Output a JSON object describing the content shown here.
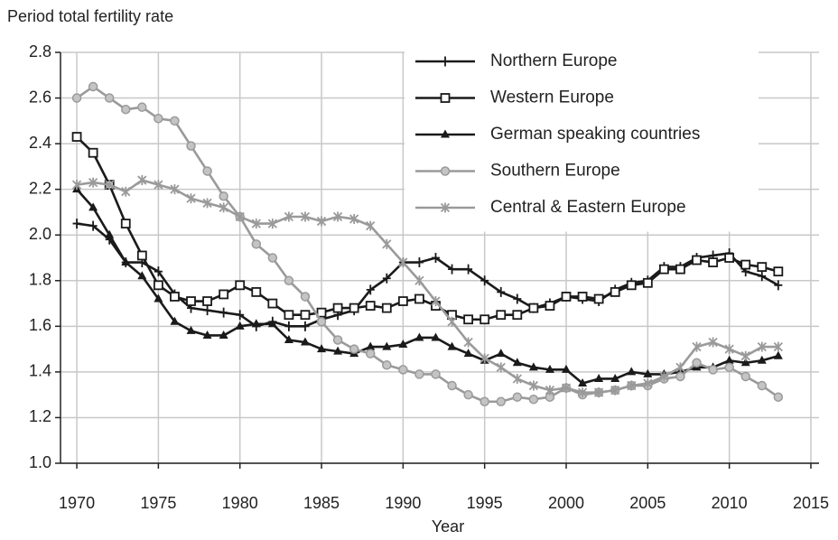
{
  "chart_data": {
    "type": "line",
    "y_label": "Period total fertility rate",
    "x_label": "Year",
    "x": [
      1970,
      1971,
      1972,
      1973,
      1974,
      1975,
      1976,
      1977,
      1978,
      1979,
      1980,
      1981,
      1982,
      1983,
      1984,
      1985,
      1986,
      1987,
      1988,
      1989,
      1990,
      1991,
      1992,
      1993,
      1994,
      1995,
      1996,
      1997,
      1998,
      1999,
      2000,
      2001,
      2002,
      2003,
      2004,
      2005,
      2006,
      2007,
      2008,
      2009,
      2010,
      2011,
      2012,
      2013
    ],
    "series": [
      {
        "name": "Northern Europe",
        "color": "#1a1a1a",
        "marker": "plus",
        "values": [
          2.05,
          2.04,
          1.98,
          1.88,
          1.88,
          1.84,
          1.74,
          1.68,
          1.67,
          1.66,
          1.65,
          1.6,
          1.62,
          1.6,
          1.6,
          1.63,
          1.65,
          1.67,
          1.76,
          1.81,
          1.88,
          1.88,
          1.9,
          1.85,
          1.85,
          1.8,
          1.75,
          1.72,
          1.68,
          1.7,
          1.73,
          1.72,
          1.71,
          1.76,
          1.79,
          1.8,
          1.86,
          1.86,
          1.9,
          1.91,
          1.92,
          1.84,
          1.82,
          1.78
        ]
      },
      {
        "name": "Western Europe",
        "color": "#1a1a1a",
        "marker": "square",
        "values": [
          2.43,
          2.36,
          2.22,
          2.05,
          1.91,
          1.78,
          1.73,
          1.71,
          1.71,
          1.74,
          1.78,
          1.75,
          1.7,
          1.65,
          1.65,
          1.66,
          1.68,
          1.68,
          1.69,
          1.68,
          1.71,
          1.72,
          1.69,
          1.65,
          1.63,
          1.63,
          1.65,
          1.65,
          1.68,
          1.69,
          1.73,
          1.73,
          1.72,
          1.75,
          1.78,
          1.79,
          1.85,
          1.85,
          1.89,
          1.88,
          1.9,
          1.87,
          1.86,
          1.84
        ]
      },
      {
        "name": "German speaking countries",
        "color": "#1a1a1a",
        "marker": "triangle",
        "values": [
          2.2,
          2.12,
          2.0,
          1.88,
          1.82,
          1.72,
          1.62,
          1.58,
          1.56,
          1.56,
          1.6,
          1.61,
          1.61,
          1.54,
          1.53,
          1.5,
          1.49,
          1.48,
          1.51,
          1.51,
          1.52,
          1.55,
          1.55,
          1.51,
          1.48,
          1.45,
          1.48,
          1.44,
          1.42,
          1.41,
          1.41,
          1.35,
          1.37,
          1.37,
          1.4,
          1.39,
          1.39,
          1.4,
          1.42,
          1.42,
          1.45,
          1.44,
          1.45,
          1.47
        ]
      },
      {
        "name": "Southern Europe",
        "color": "#9a9a9a",
        "marker": "circle",
        "values": [
          2.6,
          2.65,
          2.6,
          2.55,
          2.56,
          2.51,
          2.5,
          2.39,
          2.28,
          2.17,
          2.08,
          1.96,
          1.9,
          1.8,
          1.73,
          1.62,
          1.54,
          1.5,
          1.48,
          1.43,
          1.41,
          1.39,
          1.39,
          1.34,
          1.3,
          1.27,
          1.27,
          1.29,
          1.28,
          1.29,
          1.33,
          1.3,
          1.31,
          1.32,
          1.34,
          1.34,
          1.37,
          1.38,
          1.44,
          1.41,
          1.42,
          1.38,
          1.34,
          1.29
        ]
      },
      {
        "name": "Central & Eastern Europe",
        "color": "#9a9a9a",
        "marker": "asterisk",
        "values": [
          2.22,
          2.23,
          2.22,
          2.19,
          2.24,
          2.22,
          2.2,
          2.16,
          2.14,
          2.12,
          2.08,
          2.05,
          2.05,
          2.08,
          2.08,
          2.06,
          2.08,
          2.07,
          2.04,
          1.96,
          1.88,
          1.8,
          1.71,
          1.62,
          1.53,
          1.46,
          1.42,
          1.37,
          1.34,
          1.32,
          1.33,
          1.31,
          1.31,
          1.32,
          1.34,
          1.35,
          1.38,
          1.42,
          1.51,
          1.53,
          1.5,
          1.47,
          1.51,
          1.51
        ]
      }
    ],
    "xlim": [
      1969,
      2015.5
    ],
    "xticks": [
      1970,
      1975,
      1980,
      1985,
      1990,
      1995,
      2000,
      2005,
      2010,
      2015
    ],
    "ylim": [
      1,
      2.8
    ],
    "yticks": [
      {
        "value": 1,
        "label": "1.0"
      },
      1.2,
      1.4,
      1.6,
      1.8,
      {
        "value": 2,
        "label": "2.0"
      },
      2.2,
      2.4,
      2.6,
      2.8
    ],
    "grid": true,
    "legend": "top-right"
  }
}
